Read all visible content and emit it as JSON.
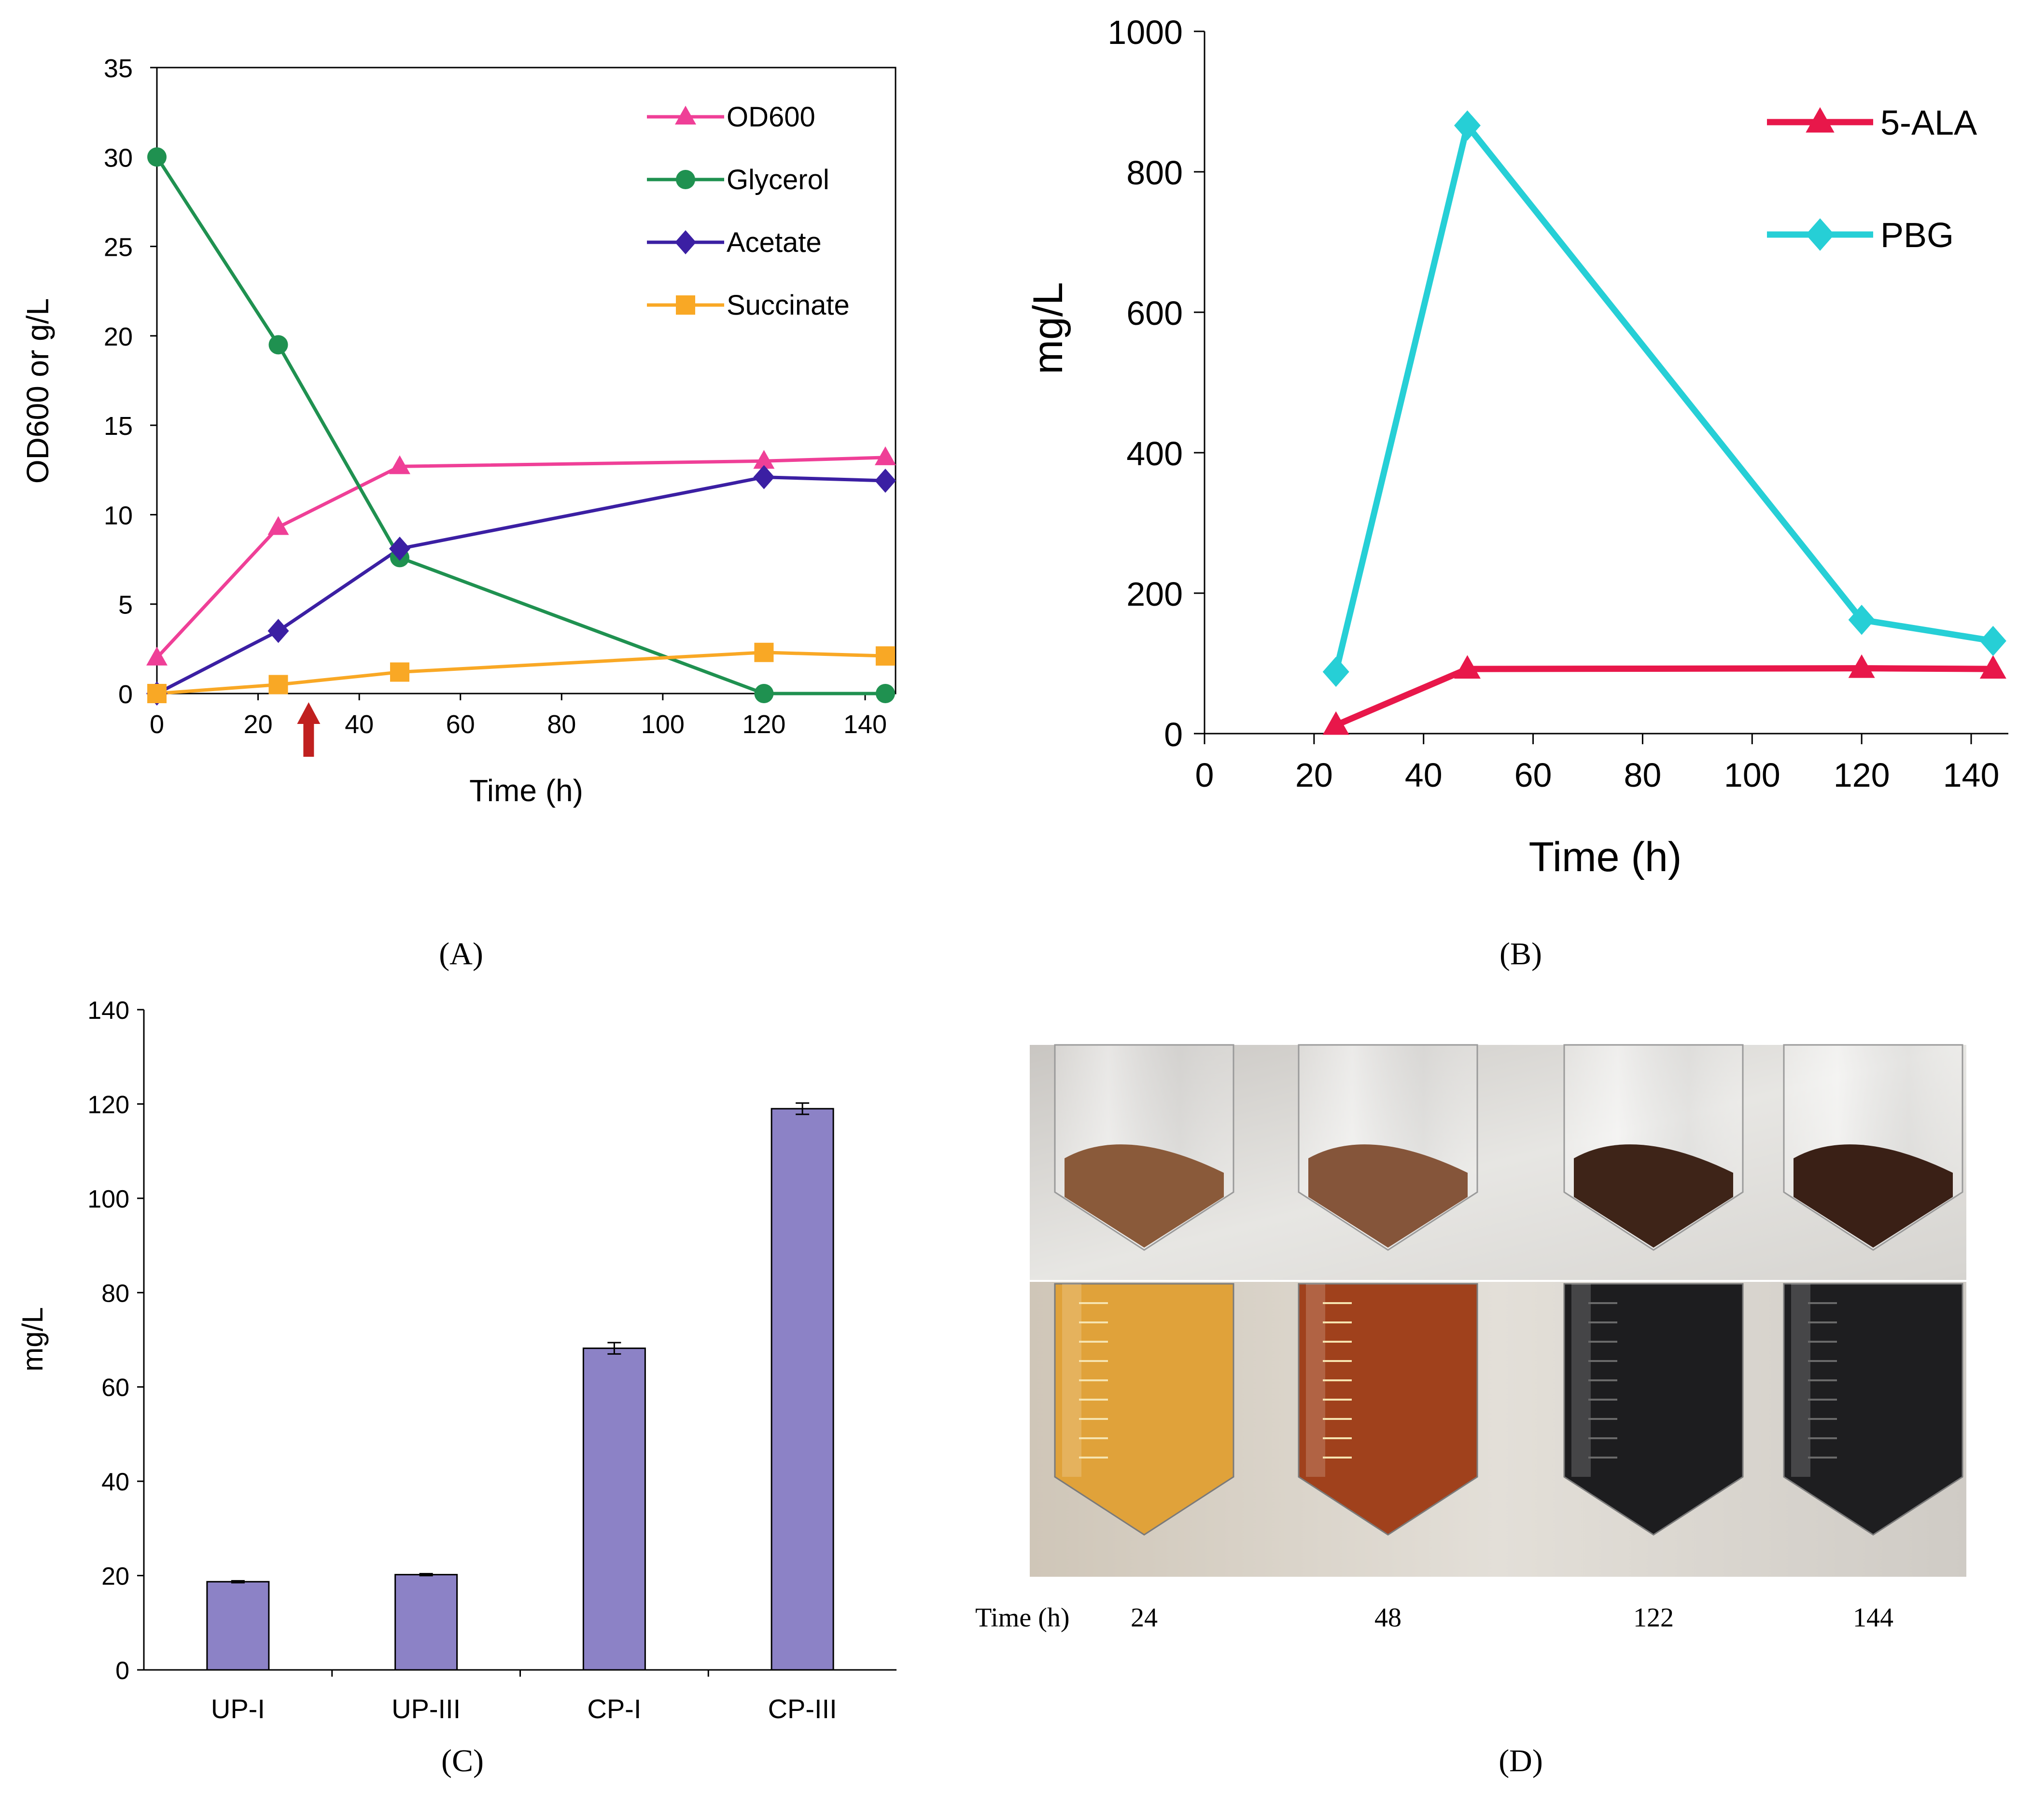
{
  "figure": {
    "panels": [
      {
        "id": "A",
        "caption": "(A)"
      },
      {
        "id": "B",
        "caption": "(B)"
      },
      {
        "id": "C",
        "caption": "(C)"
      },
      {
        "id": "D",
        "caption": "(D)"
      }
    ]
  },
  "chart_data": [
    {
      "panel": "A",
      "type": "line",
      "xlabel": "Time (h)",
      "ylabel": "OD600 or g/L",
      "xlim": [
        0,
        150
      ],
      "ylim": [
        0,
        35
      ],
      "xticks": [
        0,
        20,
        40,
        60,
        80,
        100,
        120,
        140
      ],
      "yticks": [
        0,
        5,
        10,
        15,
        20,
        25,
        30,
        35
      ],
      "legend_position": "top-right",
      "annotation": {
        "type": "arrow",
        "x": 30,
        "color": "#c0201f",
        "direction": "up"
      },
      "series": [
        {
          "name": "OD600",
          "color": "#ef3f97",
          "marker": "triangle",
          "x": [
            0,
            24,
            48,
            120,
            144
          ],
          "y": [
            2.0,
            9.3,
            12.7,
            13.0,
            13.2
          ]
        },
        {
          "name": "Glycerol",
          "color": "#1f9150",
          "marker": "circle",
          "x": [
            0,
            24,
            48,
            120,
            144
          ],
          "y": [
            30.0,
            19.5,
            7.6,
            0.0,
            0.0
          ]
        },
        {
          "name": "Acetate",
          "color": "#3b1fa3",
          "marker": "diamond",
          "x": [
            0,
            24,
            48,
            120,
            144
          ],
          "y": [
            0.0,
            3.5,
            8.1,
            12.1,
            11.9
          ]
        },
        {
          "name": "Succinate",
          "color": "#f9a825",
          "marker": "square",
          "x": [
            0,
            24,
            48,
            120,
            144
          ],
          "y": [
            0.0,
            0.5,
            1.2,
            2.3,
            2.1
          ]
        }
      ]
    },
    {
      "panel": "B",
      "type": "line",
      "xlabel": "Time (h)",
      "ylabel": "mg/L",
      "xlim": [
        0,
        150
      ],
      "ylim": [
        0,
        1000
      ],
      "xticks": [
        0,
        20,
        40,
        60,
        80,
        100,
        120,
        140
      ],
      "yticks": [
        0,
        200,
        400,
        600,
        800,
        1000
      ],
      "legend_position": "top-right",
      "series": [
        {
          "name": "5-ALA",
          "color": "#e8174a",
          "marker": "triangle",
          "x": [
            24,
            48,
            120,
            144
          ],
          "y": [
            12,
            92,
            93,
            92
          ]
        },
        {
          "name": "PBG",
          "color": "#26cfd6",
          "marker": "diamond",
          "x": [
            24,
            48,
            120,
            144
          ],
          "y": [
            88,
            866,
            162,
            132
          ]
        }
      ]
    },
    {
      "panel": "C",
      "type": "bar",
      "xlabel": "",
      "ylabel": "mg/L",
      "ylim": [
        0,
        140
      ],
      "yticks": [
        0,
        20,
        40,
        60,
        80,
        100,
        120,
        140
      ],
      "color": "#8c82c6",
      "categories": [
        "UP-I",
        "UP-III",
        "CP-I",
        "CP-III"
      ],
      "values": [
        18.7,
        20.2,
        68.2,
        119.0
      ],
      "errors": [
        0.2,
        0.2,
        1.2,
        1.2
      ]
    }
  ],
  "photo_panel": {
    "panel": "D",
    "time_label": "Time (h)",
    "times": [
      "24",
      "48",
      "122",
      "144"
    ]
  }
}
